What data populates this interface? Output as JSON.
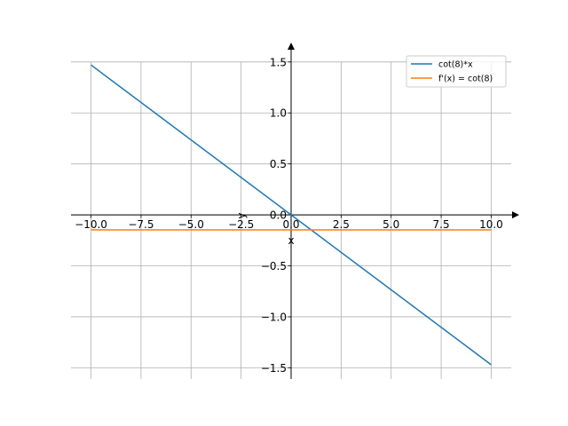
{
  "chart_data": {
    "type": "line",
    "title": "",
    "xlabel": "x",
    "ylabel": "y",
    "xlim": [
      -11,
      11
    ],
    "ylim": [
      -1.61,
      1.69
    ],
    "grid": true,
    "legend_placement": "top-right",
    "xticks": [
      -10,
      -7.5,
      -5,
      -2.5,
      0,
      2.5,
      5,
      7.5,
      10
    ],
    "xtick_labels": [
      "−10.0",
      "−7.5",
      "−5.0",
      "−2.5",
      "0.0",
      "2.5",
      "5.0",
      "7.5",
      "10.0"
    ],
    "yticks": [
      -1.5,
      -1,
      -0.5,
      0,
      0.5,
      1,
      1.5
    ],
    "ytick_labels": [
      "−1.5",
      "−1.0",
      "−0.5",
      "0.0",
      "0.5",
      "1.0",
      "1.5"
    ],
    "series": [
      {
        "name": "cot(8)*x",
        "color": "#1f77b4",
        "x": [
          -10,
          10
        ],
        "y": [
          1.4707,
          -1.4707
        ]
      },
      {
        "name": "f'(x) = cot(8)",
        "color": "#ff7f0e",
        "x": [
          -10,
          10
        ],
        "y": [
          -0.14707,
          -0.14707
        ]
      }
    ]
  }
}
